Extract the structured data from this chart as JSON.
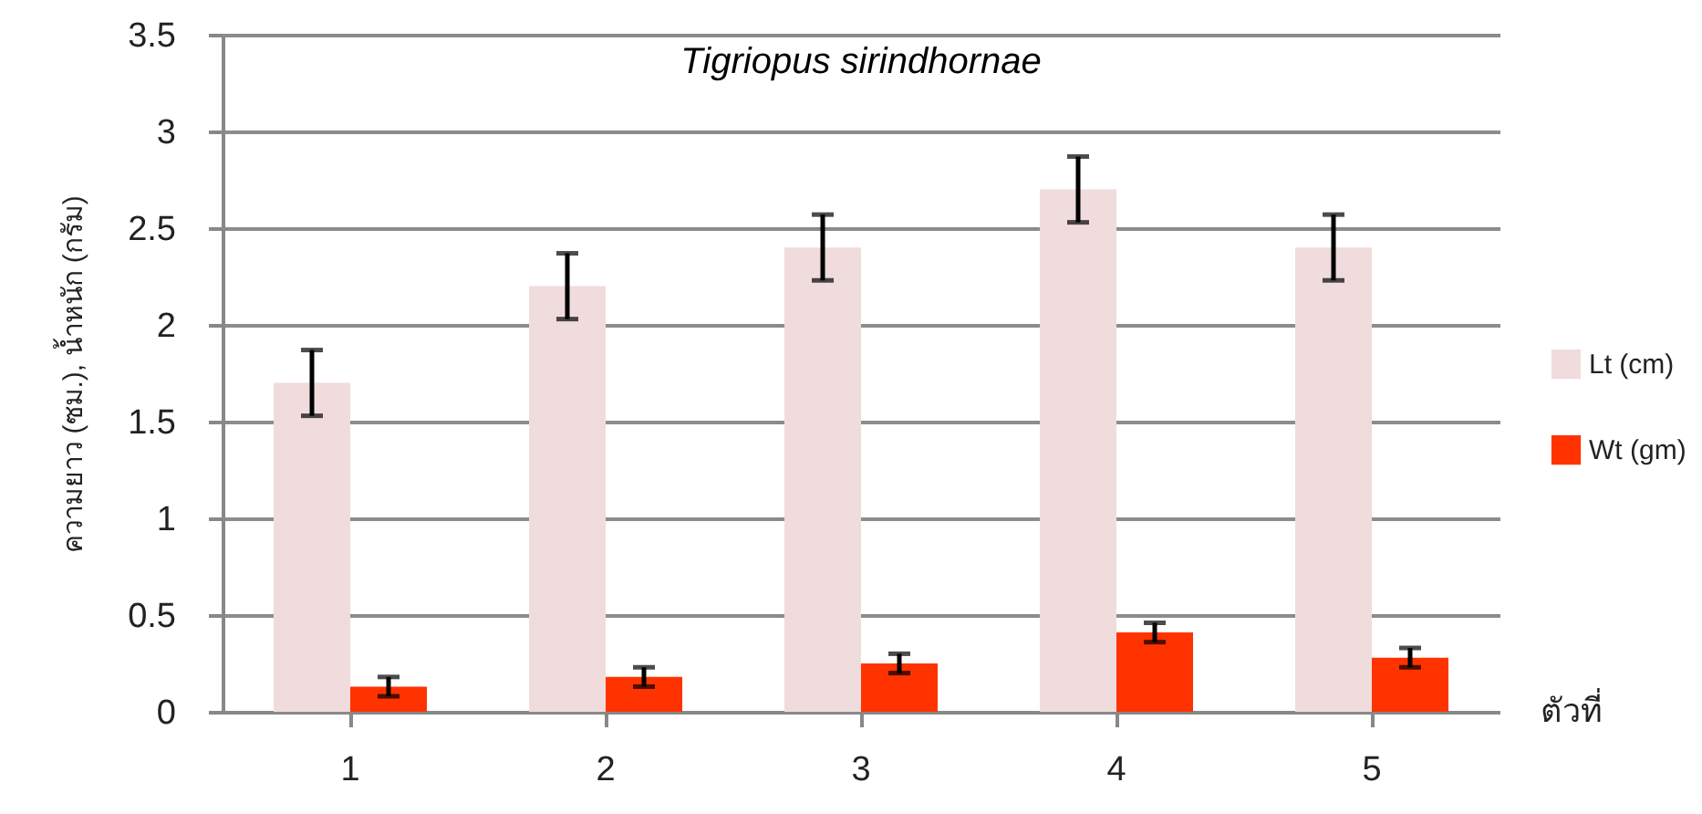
{
  "chart_data": {
    "type": "bar",
    "title": "Tigriopus sirindhornae",
    "ylabel": "ความยาว (ซม.), น้ำหนัก (กรัม)",
    "xlabel": "ตัวที่",
    "categories": [
      "1",
      "2",
      "3",
      "4",
      "5"
    ],
    "series": [
      {
        "name": "Lt (cm)",
        "color": "#f0dcdc",
        "values": [
          1.7,
          2.2,
          2.4,
          2.7,
          2.4
        ],
        "errors": [
          0.17,
          0.17,
          0.17,
          0.17,
          0.17
        ]
      },
      {
        "name": "Wt (gm)",
        "color": "#ff3300",
        "values": [
          0.13,
          0.18,
          0.25,
          0.41,
          0.28
        ],
        "errors": [
          0.05,
          0.05,
          0.05,
          0.05,
          0.05
        ]
      }
    ],
    "ylim": [
      0,
      3.5
    ],
    "yticks": [
      0,
      0.5,
      1,
      1.5,
      2,
      2.5,
      3,
      3.5
    ],
    "grid": "y",
    "legend": "right"
  }
}
